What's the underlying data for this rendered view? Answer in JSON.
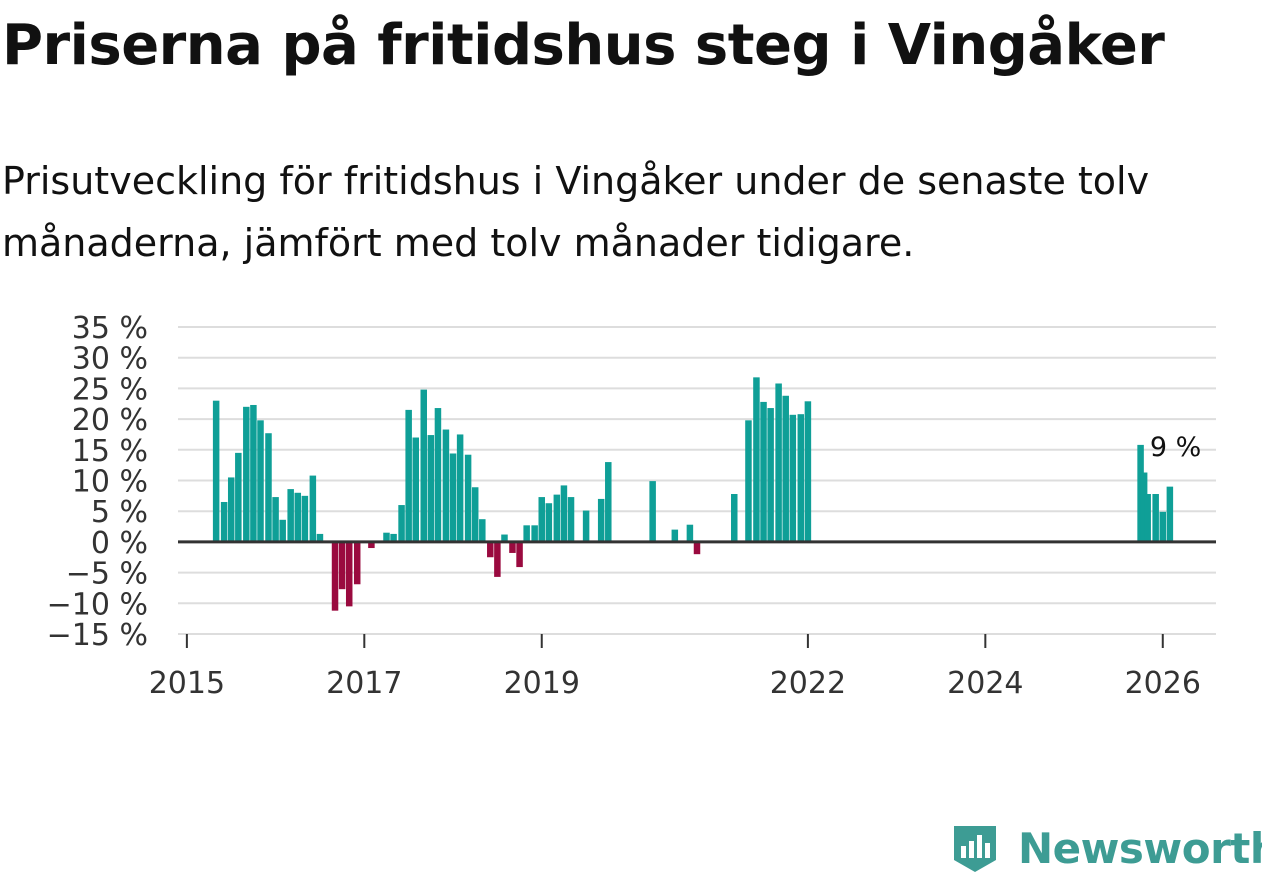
{
  "header": {
    "title": "Priserna på fritidshus steg i Vingåker",
    "subtitle": "Prisutveckling för fritidshus i Vingåker under de senaste tolv månaderna, jämfört med tolv månader tidigare."
  },
  "brand": {
    "name": "Newsworthy",
    "icon": "newsworthy-logo-icon",
    "color": "#3d9c94"
  },
  "chart_data": {
    "type": "bar",
    "title": "",
    "xlabel": "",
    "ylabel": "",
    "ylim": [
      -15,
      35
    ],
    "yticks": [
      -15,
      -10,
      -5,
      0,
      5,
      10,
      15,
      20,
      25,
      30,
      35
    ],
    "ytick_labels": [
      "−15 %",
      "−10 %",
      "−5 %",
      "0 %",
      "5 %",
      "10 %",
      "15 %",
      "20 %",
      "25 %",
      "30 %",
      "35 %"
    ],
    "xlim": [
      2014.9,
      2026.6
    ],
    "xticks": [
      2015,
      2017,
      2019,
      2022,
      2024,
      2026
    ],
    "xtick_labels": [
      "2015",
      "2017",
      "2019",
      "2022",
      "2024",
      "2026"
    ],
    "colors": {
      "positive": "#0f9f97",
      "negative": "#9a0a3f",
      "zero_line": "#333333",
      "grid": "#dddddd"
    },
    "annotation": {
      "label": "9 %",
      "x": 2026.08,
      "y": 9
    },
    "series": [
      {
        "name": "Prisutveckling",
        "points": [
          {
            "x": 2015.33,
            "y": 23
          },
          {
            "x": 2015.42,
            "y": 6.5
          },
          {
            "x": 2015.5,
            "y": 10.5
          },
          {
            "x": 2015.58,
            "y": 14.5
          },
          {
            "x": 2015.67,
            "y": 22
          },
          {
            "x": 2015.75,
            "y": 22.3
          },
          {
            "x": 2015.83,
            "y": 19.8
          },
          {
            "x": 2015.92,
            "y": 17.7
          },
          {
            "x": 2016.0,
            "y": 7.3
          },
          {
            "x": 2016.08,
            "y": 3.6
          },
          {
            "x": 2016.17,
            "y": 8.6
          },
          {
            "x": 2016.25,
            "y": 8
          },
          {
            "x": 2016.33,
            "y": 7.5
          },
          {
            "x": 2016.42,
            "y": 10.8
          },
          {
            "x": 2016.5,
            "y": 1.3
          },
          {
            "x": 2016.67,
            "y": -11.2
          },
          {
            "x": 2016.75,
            "y": -7.7
          },
          {
            "x": 2016.83,
            "y": -10.5
          },
          {
            "x": 2016.92,
            "y": -6.9
          },
          {
            "x": 2017.08,
            "y": -1
          },
          {
            "x": 2017.25,
            "y": 1.5
          },
          {
            "x": 2017.33,
            "y": 1.3
          },
          {
            "x": 2017.42,
            "y": 6
          },
          {
            "x": 2017.5,
            "y": 21.5
          },
          {
            "x": 2017.58,
            "y": 17
          },
          {
            "x": 2017.67,
            "y": 24.8
          },
          {
            "x": 2017.75,
            "y": 17.4
          },
          {
            "x": 2017.83,
            "y": 21.8
          },
          {
            "x": 2017.92,
            "y": 18.3
          },
          {
            "x": 2018.0,
            "y": 14.4
          },
          {
            "x": 2018.08,
            "y": 17.5
          },
          {
            "x": 2018.17,
            "y": 14.2
          },
          {
            "x": 2018.25,
            "y": 8.9
          },
          {
            "x": 2018.33,
            "y": 3.7
          },
          {
            "x": 2018.42,
            "y": -2.5
          },
          {
            "x": 2018.5,
            "y": -5.7
          },
          {
            "x": 2018.58,
            "y": 1.2
          },
          {
            "x": 2018.67,
            "y": -1.8
          },
          {
            "x": 2018.75,
            "y": -4.1
          },
          {
            "x": 2018.83,
            "y": 2.7
          },
          {
            "x": 2018.92,
            "y": 2.7
          },
          {
            "x": 2019.0,
            "y": 7.3
          },
          {
            "x": 2019.08,
            "y": 6.3
          },
          {
            "x": 2019.17,
            "y": 7.7
          },
          {
            "x": 2019.25,
            "y": 9.2
          },
          {
            "x": 2019.33,
            "y": 7.3
          },
          {
            "x": 2019.5,
            "y": 5.1
          },
          {
            "x": 2019.67,
            "y": 7
          },
          {
            "x": 2019.75,
            "y": 13
          },
          {
            "x": 2020.25,
            "y": 9.9
          },
          {
            "x": 2020.5,
            "y": 2
          },
          {
            "x": 2020.67,
            "y": 2.8
          },
          {
            "x": 2020.75,
            "y": -2
          },
          {
            "x": 2021.17,
            "y": 7.8
          },
          {
            "x": 2021.33,
            "y": 19.8
          },
          {
            "x": 2021.42,
            "y": 26.8
          },
          {
            "x": 2021.5,
            "y": 22.8
          },
          {
            "x": 2021.58,
            "y": 21.8
          },
          {
            "x": 2021.67,
            "y": 25.8
          },
          {
            "x": 2021.75,
            "y": 23.8
          },
          {
            "x": 2021.83,
            "y": 20.7
          },
          {
            "x": 2021.92,
            "y": 20.8
          },
          {
            "x": 2022.0,
            "y": 22.9
          },
          {
            "x": 2025.75,
            "y": 15.8
          },
          {
            "x": 2025.79,
            "y": 11.3
          },
          {
            "x": 2025.83,
            "y": 7.8
          },
          {
            "x": 2025.92,
            "y": 7.8
          },
          {
            "x": 2026.0,
            "y": 4.9
          },
          {
            "x": 2026.08,
            "y": 9
          }
        ]
      }
    ]
  }
}
